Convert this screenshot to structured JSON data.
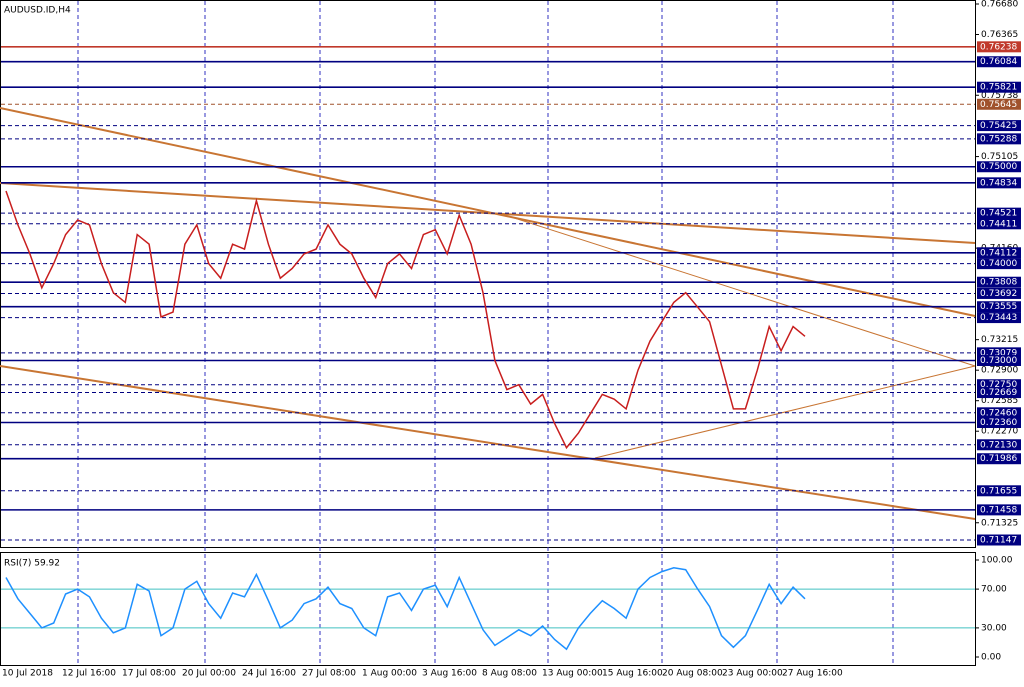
{
  "chart_data": [
    {
      "type": "line",
      "title": "AUDUSD.ID,H4",
      "x_labels": [
        "10 Jul 2018",
        "12 Jul 16:00",
        "17 Jul 08:00",
        "20 Jul 00:00",
        "24 Jul 16:00",
        "27 Jul 08:00",
        "1 Aug 00:00",
        "3 Aug 16:00",
        "8 Aug 08:00",
        "13 Aug 00:00",
        "15 Aug 16:00",
        "20 Aug 08:00",
        "23 Aug 00:00",
        "27 Aug 16:00"
      ],
      "ylim": [
        0.71147,
        0.7668
      ],
      "yticks": [
        {
          "value": 0.7668,
          "label": "0.76680"
        },
        {
          "value": 0.76365,
          "label": "0.76365"
        },
        {
          "value": 0.75738,
          "label": "0.75738"
        },
        {
          "value": 0.75105,
          "label": "0.75105"
        },
        {
          "value": 0.7416,
          "label": "0.74160"
        },
        {
          "value": 0.73215,
          "label": "0.73215"
        },
        {
          "value": 0.729,
          "label": "0.72900"
        },
        {
          "value": 0.72585,
          "label": "0.72585"
        },
        {
          "value": 0.7227,
          "label": "0.72270"
        },
        {
          "value": 0.71325,
          "label": "0.71325"
        }
      ],
      "levels": [
        {
          "value": 0.76238,
          "label": "0.76238",
          "color": "#c0392b",
          "dashed": false
        },
        {
          "value": 0.76084,
          "label": "0.76084",
          "color": "#000080",
          "dashed": false
        },
        {
          "value": 0.75821,
          "label": "0.75821",
          "color": "#000080",
          "dashed": false
        },
        {
          "value": 0.75645,
          "label": "0.75645",
          "color": "#a0522d",
          "dashed": true
        },
        {
          "value": 0.75425,
          "label": "0.75425",
          "color": "#000080",
          "dashed": true
        },
        {
          "value": 0.75288,
          "label": "0.75288",
          "color": "#000080",
          "dashed": true
        },
        {
          "value": 0.75,
          "label": "0.75000",
          "color": "#000080",
          "dashed": false
        },
        {
          "value": 0.74834,
          "label": "0.74834",
          "color": "#000080",
          "dashed": false
        },
        {
          "value": 0.74521,
          "label": "0.74521",
          "color": "#000080",
          "dashed": true
        },
        {
          "value": 0.74411,
          "label": "0.74411",
          "color": "#000080",
          "dashed": true
        },
        {
          "value": 0.74112,
          "label": "0.74112",
          "color": "#000080",
          "dashed": false
        },
        {
          "value": 0.74,
          "label": "0.74000",
          "color": "#000080",
          "dashed": true
        },
        {
          "value": 0.73808,
          "label": "0.73808",
          "color": "#000080",
          "dashed": false
        },
        {
          "value": 0.73692,
          "label": "0.73692",
          "color": "#000080",
          "dashed": true
        },
        {
          "value": 0.73555,
          "label": "0.73555",
          "color": "#000080",
          "dashed": false
        },
        {
          "value": 0.73443,
          "label": "0.73443",
          "color": "#000080",
          "dashed": true
        },
        {
          "value": 0.73079,
          "label": "0.73079",
          "color": "#000080",
          "dashed": true
        },
        {
          "value": 0.73,
          "label": "0.73000",
          "color": "#000080",
          "dashed": false
        },
        {
          "value": 0.7275,
          "label": "0.72750",
          "color": "#000080",
          "dashed": true
        },
        {
          "value": 0.72669,
          "label": "0.72669",
          "color": "#000080",
          "dashed": true
        },
        {
          "value": 0.7246,
          "label": "0.72460",
          "color": "#000080",
          "dashed": true
        },
        {
          "value": 0.7236,
          "label": "0.72360",
          "color": "#000080",
          "dashed": false
        },
        {
          "value": 0.7213,
          "label": "0.72130",
          "color": "#000080",
          "dashed": true
        },
        {
          "value": 0.71986,
          "label": "0.71986",
          "color": "#000080",
          "dashed": false
        },
        {
          "value": 0.71655,
          "label": "0.71655",
          "color": "#000080",
          "dashed": true
        },
        {
          "value": 0.71458,
          "label": "0.71458",
          "color": "#000080",
          "dashed": false
        },
        {
          "value": 0.71147,
          "label": "0.71147",
          "color": "#000080",
          "dashed": true
        }
      ],
      "series": [
        {
          "name": "AUDUSD.ID",
          "color": "#c81e1e",
          "values": [
            0.7475,
            0.744,
            0.741,
            0.7375,
            0.74,
            0.743,
            0.7445,
            0.744,
            0.74,
            0.737,
            0.736,
            0.743,
            0.742,
            0.7345,
            0.735,
            0.742,
            0.744,
            0.74,
            0.7385,
            0.742,
            0.7415,
            0.7465,
            0.742,
            0.7385,
            0.7395,
            0.741,
            0.7415,
            0.744,
            0.742,
            0.741,
            0.7385,
            0.7365,
            0.74,
            0.741,
            0.7395,
            0.743,
            0.7435,
            0.741,
            0.745,
            0.742,
            0.737,
            0.73,
            0.727,
            0.7275,
            0.7255,
            0.7265,
            0.7235,
            0.721,
            0.7225,
            0.7245,
            0.7265,
            0.726,
            0.725,
            0.729,
            0.732,
            0.734,
            0.736,
            0.737,
            0.7355,
            0.734,
            0.7295,
            0.725,
            0.725,
            0.729,
            0.7335,
            0.731,
            0.7335,
            0.7325
          ]
        }
      ]
    },
    {
      "type": "line",
      "title": "RSI(7) 59.92",
      "ylim": [
        0,
        100
      ],
      "yticks": [
        {
          "value": 100,
          "label": "100.00"
        },
        {
          "value": 70,
          "label": "70.00"
        },
        {
          "value": 30,
          "label": "30.00"
        },
        {
          "value": 0,
          "label": "0.00"
        }
      ],
      "levels": [
        70,
        30
      ],
      "series": [
        {
          "name": "RSI(7)",
          "color": "#1e90ff",
          "values": [
            82,
            60,
            45,
            30,
            35,
            65,
            70,
            62,
            40,
            25,
            30,
            75,
            68,
            22,
            30,
            70,
            78,
            55,
            40,
            66,
            62,
            85,
            58,
            30,
            38,
            55,
            60,
            72,
            55,
            50,
            30,
            22,
            62,
            66,
            48,
            70,
            74,
            52,
            82,
            55,
            28,
            12,
            20,
            28,
            22,
            32,
            18,
            8,
            30,
            45,
            58,
            50,
            40,
            70,
            82,
            88,
            92,
            90,
            70,
            52,
            22,
            10,
            22,
            48,
            75,
            55,
            72,
            60
          ]
        }
      ]
    }
  ]
}
